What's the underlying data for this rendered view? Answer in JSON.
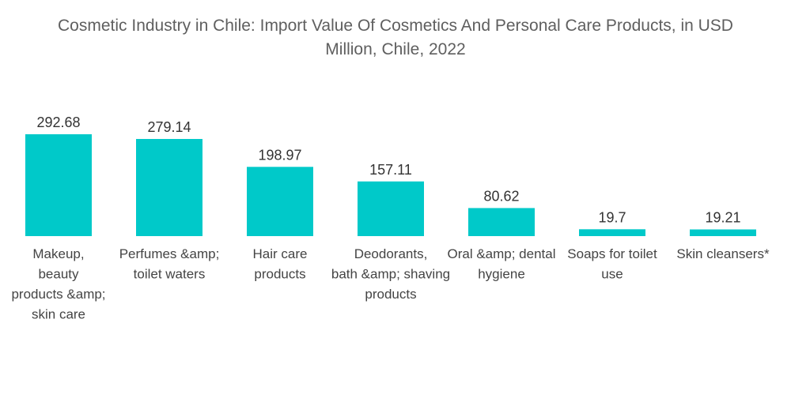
{
  "chart_data": {
    "type": "bar",
    "title_lines": [
      "Cosmetic Industry in Chile: Import Value Of Cosmetics And Personal Care Products, in USD",
      "Million, Chile, 2022"
    ],
    "title": "Cosmetic Industry in Chile: Import Value Of Cosmetics And Personal Care Products, in USD Million, Chile, 2022",
    "xlabel": "",
    "ylabel": "",
    "ylim": [
      0,
      300
    ],
    "grid": false,
    "legend": "none",
    "categories": [
      "Makeup, beauty products &amp; skin care",
      "Perfumes &amp; toilet waters",
      "Hair care products",
      "Deodorants, bath &amp; shaving products",
      "Oral &amp; dental hygiene",
      "Soaps for toilet use",
      "Skin cleansers*"
    ],
    "category_lines": [
      [
        "Makeup,",
        "beauty",
        "products &amp;",
        "skin care"
      ],
      [
        "Perfumes &amp;",
        "toilet waters"
      ],
      [
        "Hair care",
        "products"
      ],
      [
        "Deodorants,",
        "bath &amp; shaving",
        "products"
      ],
      [
        "Oral &amp; dental",
        "hygiene"
      ],
      [
        "Soaps for toilet",
        "use"
      ],
      [
        "Skin cleansers*"
      ]
    ],
    "values": [
      292.68,
      279.14,
      198.97,
      157.11,
      80.62,
      19.7,
      19.21
    ],
    "value_labels": [
      "292.68",
      "279.14",
      "198.97",
      "157.11",
      "80.62",
      "19.7",
      "19.21"
    ],
    "colors": {
      "bar": "#00c9c9"
    }
  }
}
